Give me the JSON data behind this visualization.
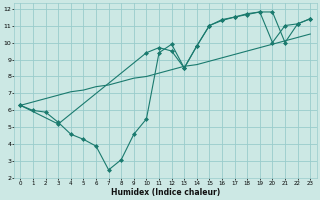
{
  "xlabel": "Humidex (Indice chaleur)",
  "bg_color": "#cce8e4",
  "grid_color": "#99cccc",
  "line_color": "#1a7a6e",
  "xlim": [
    -0.5,
    23.5
  ],
  "ylim": [
    2,
    12.3
  ],
  "xticks": [
    0,
    1,
    2,
    3,
    4,
    5,
    6,
    7,
    8,
    9,
    10,
    11,
    12,
    13,
    14,
    15,
    16,
    17,
    18,
    19,
    20,
    21,
    22,
    23
  ],
  "yticks": [
    2,
    3,
    4,
    5,
    6,
    7,
    8,
    9,
    10,
    11,
    12
  ],
  "line1_x": [
    0,
    1,
    2,
    3,
    4,
    5,
    6,
    7,
    8,
    9,
    10,
    11,
    12,
    13,
    14,
    15,
    16,
    17,
    18,
    19,
    20,
    21,
    22,
    23
  ],
  "line1_y": [
    6.3,
    6.5,
    6.7,
    6.9,
    7.1,
    7.2,
    7.4,
    7.5,
    7.7,
    7.9,
    8.0,
    8.2,
    8.4,
    8.6,
    8.7,
    8.9,
    9.1,
    9.3,
    9.5,
    9.7,
    9.9,
    10.1,
    10.3,
    10.5
  ],
  "line2_x": [
    0,
    1,
    2,
    3,
    4,
    5,
    6,
    7,
    8,
    9,
    10,
    11,
    12,
    13,
    14,
    15,
    16,
    17,
    18,
    19,
    20,
    21,
    22,
    23
  ],
  "line2_y": [
    6.3,
    6.0,
    5.9,
    5.3,
    4.6,
    4.3,
    3.9,
    2.5,
    3.1,
    4.6,
    5.5,
    9.4,
    9.9,
    8.5,
    9.8,
    11.0,
    11.3,
    11.5,
    11.7,
    11.8,
    10.0,
    11.0,
    11.1,
    11.4
  ],
  "line3_x": [
    0,
    3,
    10,
    11,
    12,
    13,
    14,
    15,
    16,
    17,
    18,
    19,
    20,
    21,
    22,
    23
  ],
  "line3_y": [
    6.3,
    5.2,
    9.4,
    9.7,
    9.5,
    8.5,
    9.8,
    11.0,
    11.35,
    11.5,
    11.65,
    11.8,
    11.8,
    10.0,
    11.1,
    11.4
  ]
}
